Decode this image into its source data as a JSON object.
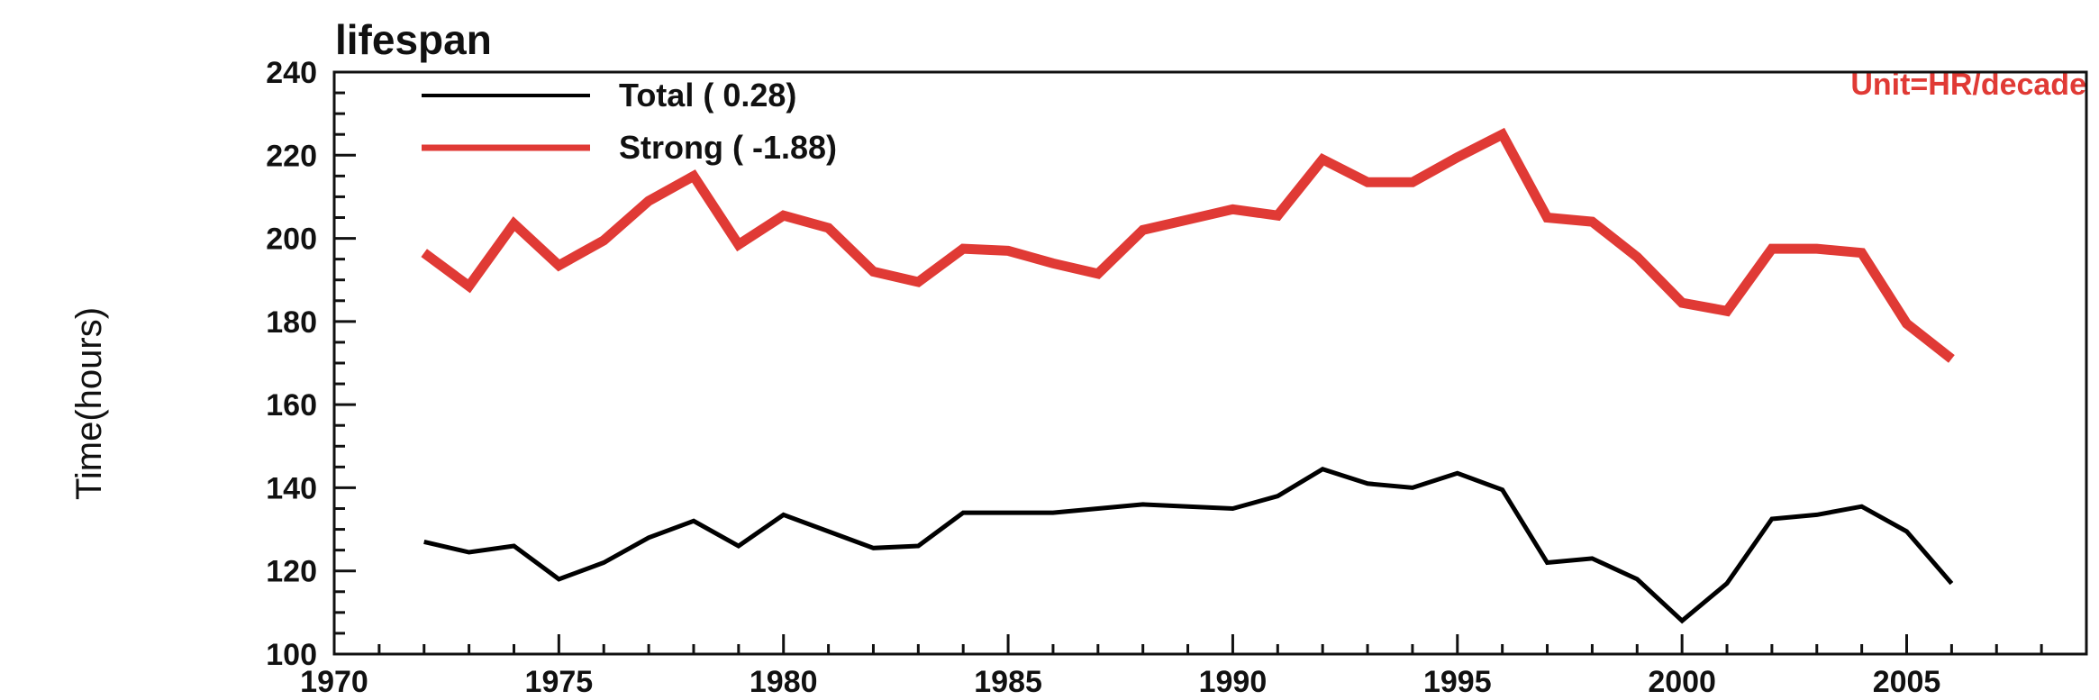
{
  "chart_data": {
    "type": "line",
    "title": "lifespan",
    "ylabel": "Time(hours)",
    "xlabel": "",
    "xlim": [
      1970,
      2009
    ],
    "ylim": [
      100,
      240
    ],
    "xticks": [
      1970,
      1975,
      1980,
      1985,
      1990,
      1995,
      2000,
      2005
    ],
    "yticks": [
      100,
      120,
      140,
      160,
      180,
      200,
      220,
      240
    ],
    "note": "Unit=HR/decade",
    "legend_position": "top-left",
    "grid": false,
    "x": [
      1972,
      1973,
      1974,
      1975,
      1976,
      1977,
      1978,
      1979,
      1980,
      1981,
      1982,
      1983,
      1984,
      1985,
      1986,
      1987,
      1988,
      1989,
      1990,
      1991,
      1992,
      1993,
      1994,
      1995,
      1996,
      1997,
      1998,
      1999,
      2000,
      2001,
      2002,
      2003,
      2004,
      2005,
      2006
    ],
    "series": [
      {
        "name": "Total (  0.28)",
        "color": "#000000",
        "values": [
          127,
          124.5,
          126,
          118,
          122,
          128,
          132,
          126,
          133.5,
          129.5,
          125.5,
          126,
          134,
          134,
          134,
          135,
          136,
          135.5,
          135,
          138,
          144.5,
          141,
          140,
          143.5,
          139.5,
          122,
          123,
          118,
          108,
          117,
          132.5,
          133.5,
          135.5,
          129.5,
          117
        ]
      },
      {
        "name": "Strong ( -1.88)",
        "color": "#e03a35",
        "values": [
          196.5,
          188.5,
          203.5,
          193.5,
          199.5,
          209,
          215,
          198.5,
          205.5,
          202.5,
          192,
          189.5,
          197.5,
          197,
          194,
          191.5,
          202,
          204.5,
          207,
          205.5,
          219,
          213.5,
          213.5,
          219.5,
          225,
          205,
          204,
          195.5,
          184.5,
          182.5,
          197.5,
          197.5,
          196.5,
          179.5,
          171
        ]
      }
    ]
  }
}
